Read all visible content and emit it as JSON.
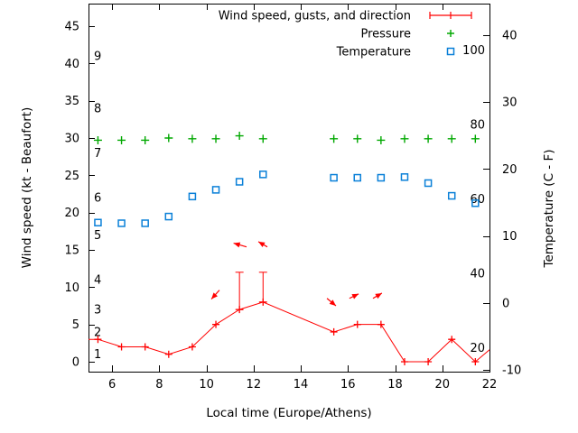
{
  "chart_data": {
    "type": "line",
    "title": "",
    "x_axis": {
      "label": "Local time (Europe/Athens)",
      "ticks": [
        6,
        8,
        10,
        12,
        14,
        16,
        18,
        20,
        22
      ],
      "range": [
        5,
        22
      ]
    },
    "y_left_axis": {
      "label": "Wind speed (kt - Beaufort)",
      "ticks": [
        0,
        5,
        10,
        15,
        20,
        25,
        30,
        35,
        40,
        45
      ],
      "range": [
        -1.3,
        48.1
      ],
      "inside_beaufort_labels": [
        {
          "b": "1",
          "kt": 1
        },
        {
          "b": "2",
          "kt": 4
        },
        {
          "b": "3",
          "kt": 7
        },
        {
          "b": "4",
          "kt": 11
        },
        {
          "b": "5",
          "kt": 17
        },
        {
          "b": "6",
          "kt": 22
        },
        {
          "b": "7",
          "kt": 28
        },
        {
          "b": "8",
          "kt": 34
        },
        {
          "b": "9",
          "kt": 41
        }
      ]
    },
    "y_right_axis": {
      "label": "Temperature (C - F)",
      "ticks": [
        -10,
        0,
        10,
        20,
        30,
        40
      ],
      "range": [
        -10.2,
        44.7
      ],
      "inside_fahrenheit_labels": [
        100,
        80,
        60,
        40,
        20
      ]
    },
    "legend": {
      "position": "top-right",
      "entries": [
        {
          "label": "Wind speed, gusts, and direction",
          "marker": "errorbar-line",
          "color": "#ff0000"
        },
        {
          "label": "Pressure",
          "marker": "plus",
          "color": "#00a800"
        },
        {
          "label": "Temperature",
          "marker": "open-square",
          "color": "#0a80d8"
        }
      ]
    },
    "x_shared": [
      5.4,
      6.4,
      7.4,
      8.4,
      9.4,
      10.4,
      11.4,
      12.4,
      15.4,
      16.4,
      17.4,
      18.4,
      19.4,
      20.4,
      21.4
    ],
    "series": [
      {
        "name": "wind_speed_and_gusts",
        "type": "line-with-plus-markers-and-gust-errorbars",
        "color": "#ff0000",
        "y_kt": [
          3,
          2,
          2,
          1,
          2,
          5,
          7,
          8,
          4,
          5,
          5,
          0,
          0,
          3,
          0
        ],
        "gust_kt": [
          null,
          null,
          null,
          null,
          null,
          null,
          12,
          12,
          null,
          null,
          null,
          null,
          null,
          null,
          null
        ],
        "edge_lead_point": [
          5,
          3
        ],
        "edge_tail_point": [
          22,
          1.6
        ]
      },
      {
        "name": "wind_direction_arrows",
        "type": "vectors",
        "color": "#ff0000",
        "arrows": [
          {
            "from": [
              10.55,
              9.6
            ],
            "to": [
              10.21,
              8.4
            ]
          },
          {
            "from": [
              11.7,
              15.4
            ],
            "to": [
              11.15,
              15.9
            ]
          },
          {
            "from": [
              12.58,
              15.4
            ],
            "to": [
              12.2,
              16.1
            ]
          },
          {
            "from": [
              15.11,
              8.5
            ],
            "to": [
              15.49,
              7.5
            ]
          },
          {
            "from": [
              16.06,
              8.5
            ],
            "to": [
              16.45,
              9.1
            ]
          },
          {
            "from": [
              17.06,
              8.5
            ],
            "to": [
              17.44,
              9.2
            ]
          }
        ]
      },
      {
        "name": "pressure",
        "type": "plus-markers",
        "color": "#00a800",
        "y_on_left_kt_scale": [
          29.7,
          29.7,
          29.7,
          30.0,
          29.9,
          29.9,
          30.3,
          29.9,
          29.9,
          29.9,
          29.7,
          29.9,
          29.9,
          29.9,
          29.9
        ]
      },
      {
        "name": "temperature",
        "type": "open-square-markers",
        "color": "#0a80d8",
        "y_celsius": [
          12.0,
          11.9,
          11.9,
          12.9,
          15.9,
          16.9,
          18.1,
          19.2,
          18.7,
          18.7,
          18.7,
          18.8,
          17.9,
          16.0,
          14.9
        ]
      }
    ]
  }
}
